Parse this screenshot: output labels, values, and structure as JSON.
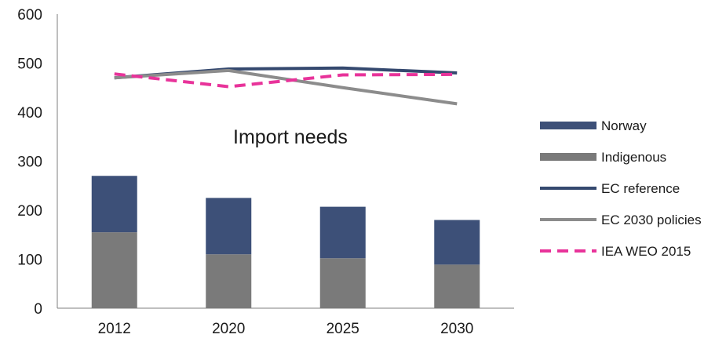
{
  "chart_data": {
    "type": "bar",
    "categories": [
      "2012",
      "2020",
      "2025",
      "2030"
    ],
    "bar_series": [
      {
        "name": "Indigenous",
        "values": [
          155,
          110,
          102,
          89
        ],
        "color": "#7a7a7a"
      },
      {
        "name": "Norway",
        "values": [
          115,
          115,
          105,
          91
        ],
        "color": "#3d5078"
      }
    ],
    "line_series": [
      {
        "name": "EC reference",
        "values": [
          470,
          488,
          490,
          480
        ],
        "color": "#35496f",
        "dash": "solid"
      },
      {
        "name": "EC 2030 policies",
        "values": [
          470,
          485,
          450,
          417
        ],
        "color": "#8c8c8c",
        "dash": "solid"
      },
      {
        "name": "IEA WEO 2015",
        "values": [
          478,
          452,
          476,
          477
        ],
        "color": "#e8339a",
        "dash": "dashed"
      }
    ],
    "annotation": "Import needs",
    "ylim": [
      0,
      600
    ],
    "yticks": [
      "0",
      "100",
      "200",
      "300",
      "400",
      "500",
      "600"
    ],
    "grid": false,
    "legend_position": "right"
  }
}
